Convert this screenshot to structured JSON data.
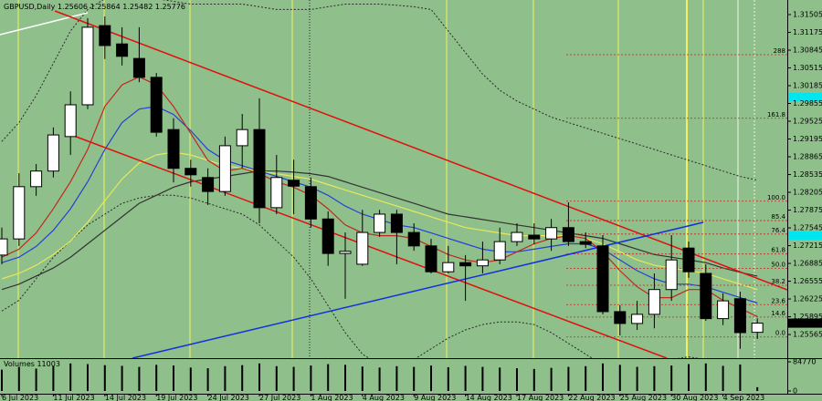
{
  "chart_data": {
    "type": "candlestick",
    "title": "GBPUSD,Daily",
    "up_color": "#ffffff",
    "down_color": "#000000",
    "categories": [
      "6 Jul 2023",
      null,
      null,
      "11 Jul 2023",
      null,
      null,
      "14 Jul 2023",
      null,
      null,
      "19 Jul 2023",
      null,
      null,
      "24 Jul 2023",
      null,
      null,
      "27 Jul 2023",
      null,
      null,
      "1 Aug 2023",
      null,
      null,
      "4 Aug 2023",
      null,
      null,
      "9 Aug 2023",
      null,
      null,
      "14 Aug 2023",
      null,
      null,
      "17 Aug 2023",
      null,
      null,
      "22 Aug 2023",
      null,
      null,
      "25 Aug 2023",
      null,
      null,
      "30 Aug 2023",
      null,
      null,
      "4 Sep 2023",
      null,
      null
    ],
    "open": [
      1.2704,
      1.2734,
      1.2831,
      1.286,
      1.2924,
      1.2983,
      1.313,
      1.3096,
      1.3069,
      1.3034,
      1.2937,
      1.2865,
      1.2848,
      1.2822,
      1.2907,
      1.2937,
      1.2792,
      1.2843,
      1.2831,
      1.2771,
      1.2707,
      1.2687,
      1.2746,
      1.278,
      1.2746,
      1.2721,
      1.2673,
      1.269,
      1.2684,
      1.2695,
      1.2729,
      1.2741,
      1.2734,
      1.2755,
      1.2729,
      1.2721,
      1.2599,
      1.2577,
      1.2594,
      1.264,
      1.2717,
      1.267,
      1.2586,
      1.2623,
      1.25606
    ],
    "high": [
      1.2755,
      1.2856,
      1.2873,
      1.2941,
      1.3008,
      1.3144,
      1.3147,
      1.3127,
      1.3127,
      1.3042,
      1.2958,
      1.2881,
      1.2865,
      1.2924,
      1.2966,
      1.2995,
      1.289,
      1.2881,
      1.2848,
      1.2785,
      1.2746,
      1.2788,
      1.2788,
      1.2788,
      1.2763,
      1.2734,
      1.2721,
      1.2704,
      1.2729,
      1.2755,
      1.2763,
      1.2763,
      1.2771,
      1.2802,
      1.2746,
      1.2741,
      1.2611,
      1.2619,
      1.267,
      1.2741,
      1.2729,
      1.2687,
      1.2633,
      1.2636,
      1.25864
    ],
    "low": [
      1.2687,
      1.2721,
      1.2814,
      1.2848,
      1.289,
      1.2975,
      1.3068,
      1.3056,
      1.3025,
      1.2924,
      1.2839,
      1.2831,
      1.2797,
      1.2814,
      1.2865,
      1.2763,
      1.278,
      1.278,
      1.2755,
      1.2684,
      1.2623,
      1.2684,
      1.2738,
      1.2687,
      1.2712,
      1.267,
      1.267,
      1.2619,
      1.267,
      1.2687,
      1.2721,
      1.2724,
      1.2712,
      1.2721,
      1.2717,
      1.2594,
      1.2555,
      1.2565,
      1.2568,
      1.2619,
      1.2662,
      1.2582,
      1.2574,
      1.253,
      1.25482
    ],
    "close": [
      1.2734,
      1.2831,
      1.286,
      1.2927,
      1.2983,
      1.3127,
      1.3093,
      1.3073,
      1.3034,
      1.2932,
      1.2865,
      1.2853,
      1.2822,
      1.2907,
      1.2937,
      1.2792,
      1.2848,
      1.2832,
      1.2771,
      1.2707,
      1.2711,
      1.2746,
      1.278,
      1.2746,
      1.2721,
      1.2673,
      1.269,
      1.2684,
      1.2695,
      1.2729,
      1.2746,
      1.2734,
      1.2755,
      1.2729,
      1.2724,
      1.2599,
      1.2577,
      1.2594,
      1.264,
      1.2695,
      1.2673,
      1.2586,
      1.2619,
      1.256,
      1.25776
    ],
    "indicators": [
      {
        "color": "#2a2a2a",
        "style": "dotted",
        "values": [
          1.2915,
          1.295,
          1.3,
          1.306,
          1.312,
          1.316,
          1.318,
          1.3185,
          1.3185,
          1.318,
          1.3175,
          1.317,
          1.317,
          1.317,
          1.317,
          1.3165,
          1.316,
          1.316,
          1.316,
          1.3165,
          1.317,
          1.317,
          1.317,
          1.3168,
          1.3165,
          1.316,
          1.312,
          1.308,
          1.304,
          1.301,
          1.299,
          1.2975,
          1.296,
          1.295,
          1.294,
          1.293,
          1.292,
          1.291,
          1.29,
          1.289,
          1.288,
          1.287,
          1.286,
          1.285,
          1.2843
        ]
      },
      {
        "color": "#2a2a2a",
        "style": "dotted",
        "values": [
          1.26,
          1.262,
          1.266,
          1.27,
          1.273,
          1.276,
          1.278,
          1.28,
          1.281,
          1.2815,
          1.2815,
          1.281,
          1.28,
          1.279,
          1.278,
          1.276,
          1.273,
          1.27,
          1.266,
          1.261,
          1.256,
          1.252,
          1.25,
          1.25,
          1.251,
          1.253,
          1.255,
          1.2565,
          1.2575,
          1.258,
          1.258,
          1.2575,
          1.256,
          1.254,
          1.252,
          1.25,
          1.2495,
          1.2495,
          1.25,
          1.251,
          1.2515,
          1.251,
          1.25,
          1.249,
          1.248
        ]
      },
      {
        "color": "#333333",
        "style": "solid",
        "values": [
          1.264,
          1.265,
          1.2665,
          1.268,
          1.27,
          1.2725,
          1.275,
          1.2775,
          1.28,
          1.2815,
          1.283,
          1.284,
          1.2845,
          1.285,
          1.2855,
          1.286,
          1.286,
          1.2858,
          1.2855,
          1.285,
          1.284,
          1.283,
          1.282,
          1.281,
          1.28,
          1.279,
          1.278,
          1.2775,
          1.277,
          1.2765,
          1.276,
          1.2755,
          1.275,
          1.2745,
          1.274,
          1.2735,
          1.2725,
          1.2715,
          1.2705,
          1.27,
          1.2695,
          1.269,
          1.268,
          1.2672,
          1.2665
        ]
      },
      {
        "color": "#e8e85a",
        "style": "solid",
        "values": [
          1.266,
          1.267,
          1.2685,
          1.2705,
          1.273,
          1.2765,
          1.2805,
          1.2845,
          1.2875,
          1.289,
          1.2895,
          1.289,
          1.288,
          1.287,
          1.2865,
          1.286,
          1.2855,
          1.285,
          1.2845,
          1.2835,
          1.2825,
          1.2815,
          1.2805,
          1.2795,
          1.2785,
          1.2775,
          1.2765,
          1.2755,
          1.275,
          1.2745,
          1.274,
          1.274,
          1.274,
          1.274,
          1.2735,
          1.2725,
          1.271,
          1.2695,
          1.2685,
          1.268,
          1.2675,
          1.267,
          1.266,
          1.265,
          1.264
        ]
      },
      {
        "color": "#2440d8",
        "style": "solid",
        "values": [
          1.269,
          1.27,
          1.272,
          1.275,
          1.279,
          1.284,
          1.29,
          1.295,
          1.2975,
          1.298,
          1.2965,
          1.2935,
          1.29,
          1.288,
          1.287,
          1.286,
          1.285,
          1.284,
          1.283,
          1.2815,
          1.2795,
          1.278,
          1.277,
          1.276,
          1.2755,
          1.2745,
          1.2735,
          1.2725,
          1.2715,
          1.271,
          1.271,
          1.2715,
          1.272,
          1.2725,
          1.2725,
          1.2715,
          1.2695,
          1.2675,
          1.266,
          1.265,
          1.265,
          1.2645,
          1.2635,
          1.2625,
          1.2615
        ]
      },
      {
        "color": "#c0281e",
        "style": "solid",
        "values": [
          1.27,
          1.2715,
          1.2745,
          1.279,
          1.284,
          1.29,
          1.298,
          1.302,
          1.3035,
          1.302,
          1.298,
          1.293,
          1.288,
          1.286,
          1.2865,
          1.2855,
          1.284,
          1.283,
          1.2815,
          1.279,
          1.276,
          1.2745,
          1.274,
          1.274,
          1.2735,
          1.272,
          1.2705,
          1.2695,
          1.269,
          1.2695,
          1.271,
          1.2725,
          1.2735,
          1.274,
          1.2735,
          1.271,
          1.2675,
          1.2645,
          1.2625,
          1.2625,
          1.264,
          1.264,
          1.262,
          1.2605,
          1.259
        ]
      }
    ],
    "fib_color": "#d02020",
    "fib_levels": [
      {
        "label": "288",
        "price": 1.3076
      },
      {
        "label": "161.8",
        "price": 1.2958
      },
      {
        "label": "100.0",
        "price": 1.2804
      },
      {
        "label": "85.4",
        "price": 1.2768
      },
      {
        "label": "76.4",
        "price": 1.2743
      },
      {
        "label": "61.8",
        "price": 1.2706
      },
      {
        "label": "50.0",
        "price": 1.2679
      },
      {
        "label": "38.2",
        "price": 1.2648
      },
      {
        "label": "23.6",
        "price": 1.2612
      },
      {
        "label": "14.6",
        "price": 1.2589
      },
      {
        "label": "0.0",
        "price": 1.2552
      }
    ],
    "ylim": [
      1.25126,
      1.31691
    ],
    "yticks": [
      1.31505,
      1.31175,
      1.30845,
      1.30515,
      1.30185,
      1.29855,
      1.29525,
      1.29195,
      1.28865,
      1.28535,
      1.28205,
      1.27875,
      1.27545,
      1.27215,
      1.26885,
      1.26555,
      1.26225,
      1.25895,
      1.25565
    ],
    "volume_label": "Volumes",
    "volume_color": "#000000",
    "volumes": [
      62000,
      70000,
      65000,
      72000,
      80000,
      78000,
      75000,
      73000,
      70000,
      76000,
      74000,
      68000,
      66000,
      72000,
      75000,
      80000,
      72000,
      70000,
      74000,
      78000,
      76000,
      71000,
      68000,
      72000,
      70000,
      74000,
      69000,
      73000,
      70000,
      68000,
      66000,
      64000,
      67000,
      70000,
      72000,
      80000,
      76000,
      70000,
      72000,
      74000,
      78000,
      80000,
      73000,
      77000,
      11003
    ],
    "vlim": [
      0,
      84770
    ],
    "vticks": [
      0,
      84770
    ],
    "grid": false
  }
}
